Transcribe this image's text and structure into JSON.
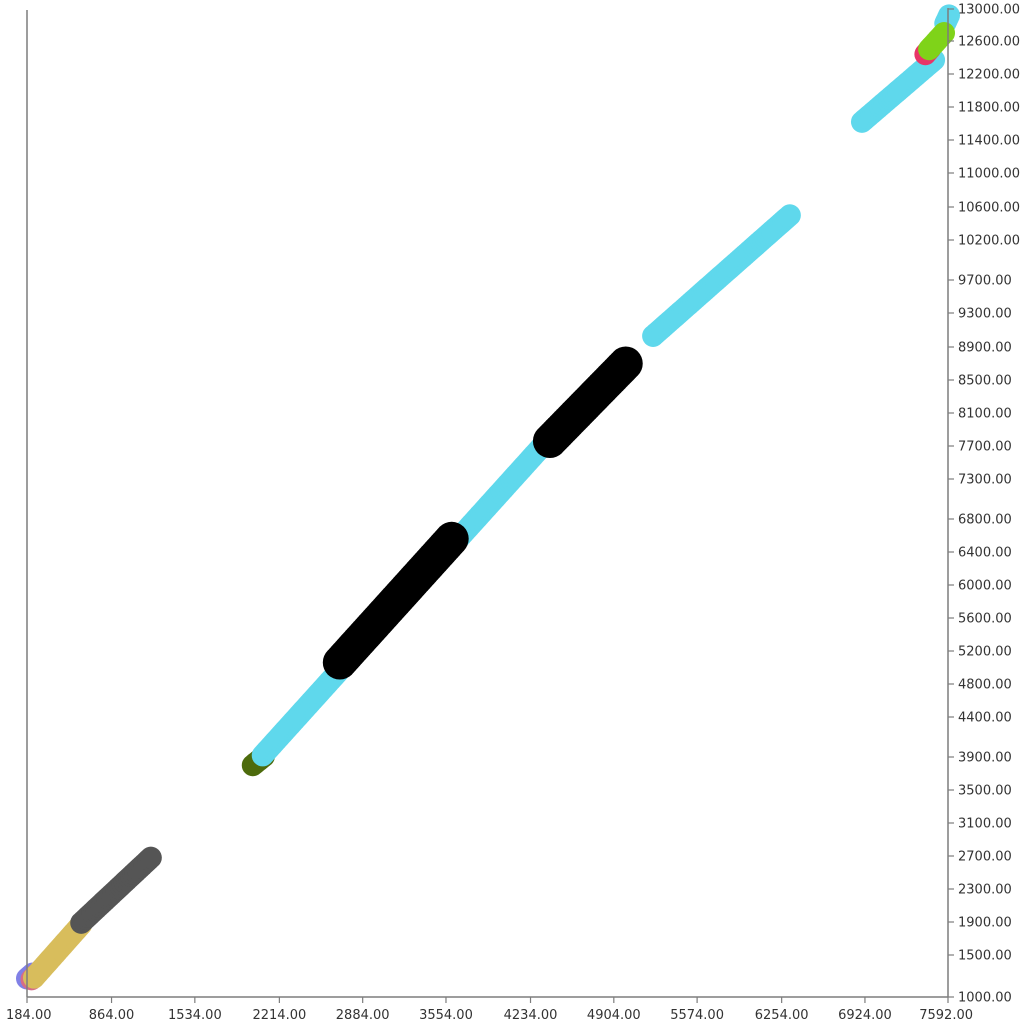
{
  "chart_data": {
    "type": "scatter",
    "title": "",
    "xlabel": "",
    "ylabel": "",
    "xlim": [
      184,
      7592
    ],
    "ylim": [
      1000,
      13000
    ],
    "y_scale": "piecewise (spacing between tick labels is not uniform)",
    "grid": false,
    "legend": "none",
    "x_ticks": [
      184,
      864,
      1534,
      2214,
      2884,
      3554,
      4234,
      4904,
      5574,
      6254,
      6924,
      7592
    ],
    "y_ticks": [
      1000,
      1500,
      1900,
      2300,
      2700,
      3100,
      3500,
      3900,
      4400,
      4800,
      5200,
      5600,
      6000,
      6400,
      6800,
      7300,
      7700,
      8100,
      8500,
      8900,
      9300,
      9700,
      10200,
      10600,
      11000,
      11400,
      11800,
      12200,
      12600,
      13000
    ],
    "x_tick_labels": [
      "184.00",
      "864.00",
      "1534.00",
      "2214.00",
      "2884.00",
      "3554.00",
      "4234.00",
      "4904.00",
      "5574.00",
      "6254.00",
      "6924.00",
      "7592.00"
    ],
    "y_tick_labels": [
      "1000.00",
      "1500.00",
      "1900.00",
      "2300.00",
      "2700.00",
      "3100.00",
      "3500.00",
      "3900.00",
      "4400.00",
      "4800.00",
      "5200.00",
      "5600.00",
      "6000.00",
      "6400.00",
      "6800.00",
      "7300.00",
      "7700.00",
      "8100.00",
      "8500.00",
      "8900.00",
      "9300.00",
      "9700.00",
      "10200.00",
      "10600.00",
      "11000.00",
      "11400.00",
      "11800.00",
      "12200.00",
      "12600.00",
      "13000.00"
    ],
    "series": [
      {
        "color": "#8080e6",
        "segments": [
          [
            184,
            1220,
            230,
            1280
          ]
        ]
      },
      {
        "color": "#d66c88",
        "segments": [
          [
            220,
            1210,
            260,
            1270
          ]
        ]
      },
      {
        "color": "#d8bd5c",
        "segments": [
          [
            240,
            1230,
            620,
            1870
          ]
        ]
      },
      {
        "color": "#555555",
        "segments": [
          [
            620,
            1890,
            1180,
            2680
          ]
        ]
      },
      {
        "color": "#4d6b0d",
        "segments": [
          [
            2000,
            3800,
            2090,
            3910
          ]
        ]
      },
      {
        "color": "#5fd8ec",
        "segments": [
          [
            2080,
            3920,
            4340,
            7720
          ],
          [
            5220,
            9030,
            6320,
            10500
          ],
          [
            6900,
            11620,
            7480,
            12370
          ],
          [
            7570,
            12820,
            7600,
            12920
          ]
        ]
      },
      {
        "color": "#000000",
        "segments": [
          [
            2700,
            5060,
            3600,
            6560
          ],
          [
            4390,
            7760,
            5000,
            8700
          ]
        ]
      },
      {
        "color": "#e83568",
        "segments": [
          [
            7410,
            12440,
            7450,
            12510
          ]
        ]
      },
      {
        "color": "#7fd319",
        "segments": [
          [
            7440,
            12500,
            7560,
            12700
          ]
        ]
      }
    ]
  }
}
